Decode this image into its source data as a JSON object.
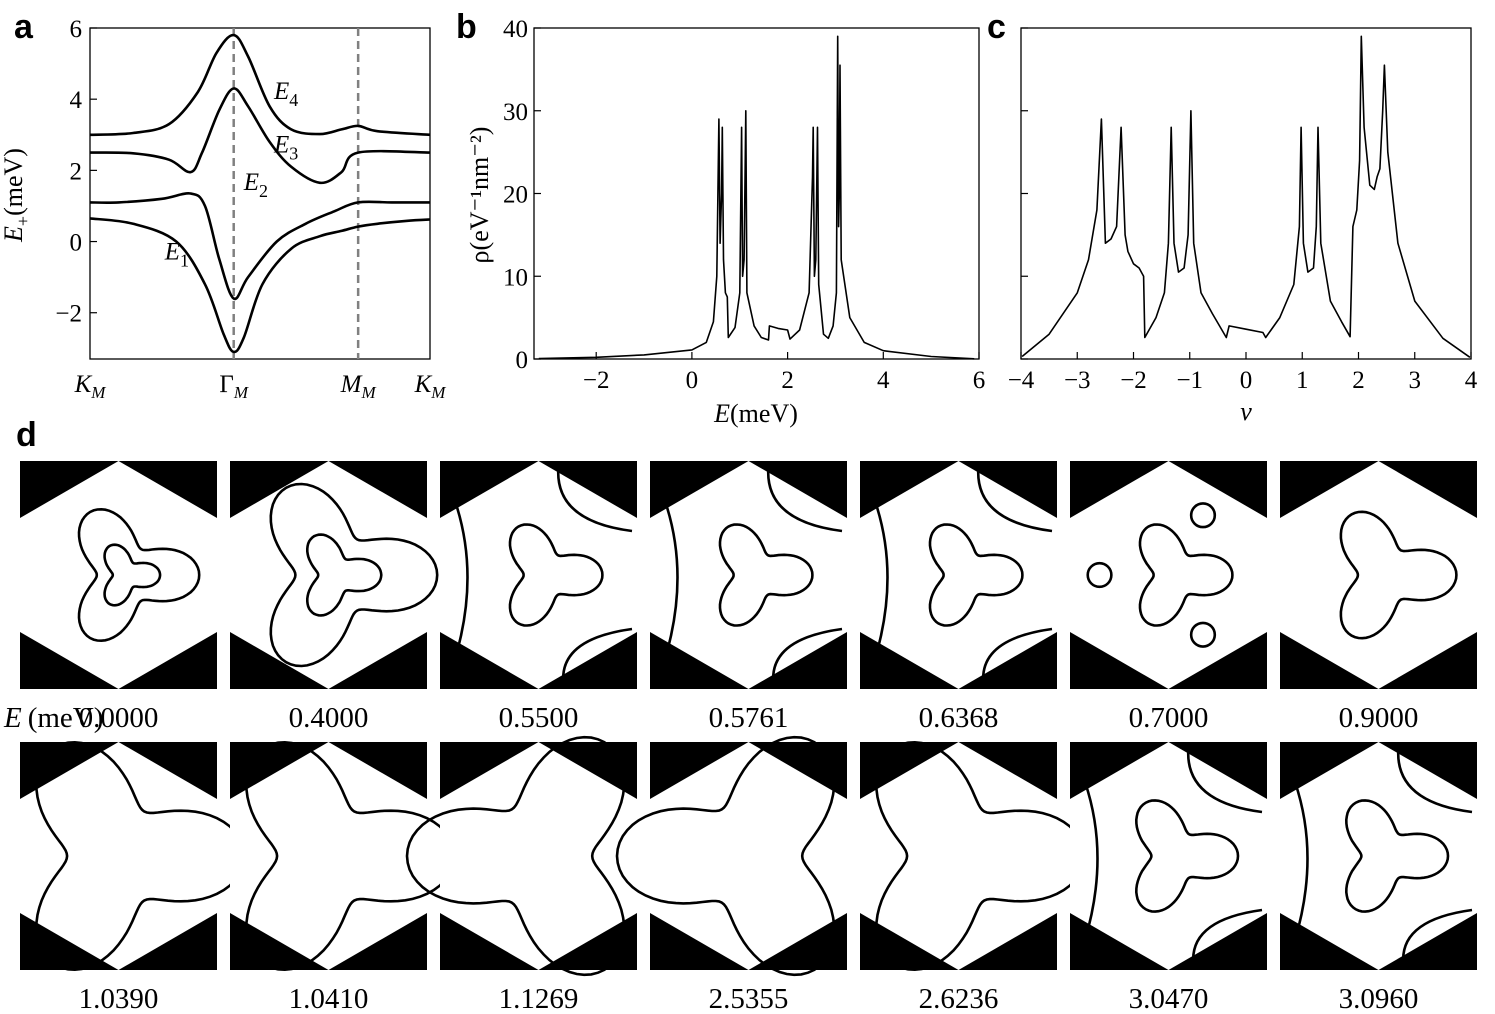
{
  "figure_labels": {
    "a": "a",
    "b": "b",
    "c": "c",
    "d": "d"
  },
  "chart_data": [
    {
      "id": "a",
      "type": "line",
      "title": "",
      "xlabel": "",
      "ylabel_main": "E",
      "ylabel_sub": "+",
      "ylabel_unit": "(meV)",
      "xticks": [
        {
          "label": "K",
          "sub": "M",
          "pos": 0
        },
        {
          "label": "Γ",
          "sub": "M",
          "pos": 1
        },
        {
          "label": "M",
          "sub": "M",
          "pos": 1.866
        },
        {
          "label": "K",
          "sub": "M",
          "pos": 2.366
        }
      ],
      "path_length": 2.366,
      "dashed_at": [
        1,
        1.866
      ],
      "ylim": [
        -3.3,
        6.0
      ],
      "yticks": [
        {
          "v": -2,
          "label": "−2"
        },
        {
          "v": 0,
          "label": "0"
        },
        {
          "v": 2,
          "label": "2"
        },
        {
          "v": 4,
          "label": "4"
        },
        {
          "v": 6,
          "label": "6"
        }
      ],
      "series": [
        {
          "name": "E1",
          "label": "E",
          "sub": "1",
          "label_at": [
            0.52,
            -0.5
          ],
          "points": [
            [
              0,
              0.65
            ],
            [
              0.3,
              0.5
            ],
            [
              0.6,
              0.0
            ],
            [
              0.8,
              -1.2
            ],
            [
              0.93,
              -2.6
            ],
            [
              1.0,
              -3.1
            ],
            [
              1.07,
              -2.7
            ],
            [
              1.2,
              -1.2
            ],
            [
              1.4,
              -0.2
            ],
            [
              1.6,
              0.15
            ],
            [
              1.75,
              0.3
            ],
            [
              1.866,
              0.42
            ],
            [
              2.0,
              0.5
            ],
            [
              2.2,
              0.58
            ],
            [
              2.366,
              0.62
            ]
          ]
        },
        {
          "name": "E2",
          "label": "E",
          "sub": "2",
          "label_at": [
            1.07,
            1.45
          ],
          "points": [
            [
              0,
              1.1
            ],
            [
              0.2,
              1.1
            ],
            [
              0.5,
              1.2
            ],
            [
              0.7,
              1.35
            ],
            [
              0.8,
              1.0
            ],
            [
              0.9,
              -0.5
            ],
            [
              1.0,
              -1.6
            ],
            [
              1.1,
              -1.0
            ],
            [
              1.3,
              0.0
            ],
            [
              1.5,
              0.5
            ],
            [
              1.7,
              0.85
            ],
            [
              1.866,
              1.1
            ],
            [
              2.1,
              1.1
            ],
            [
              2.366,
              1.1
            ]
          ]
        },
        {
          "name": "E3",
          "label": "E",
          "sub": "3",
          "label_at": [
            1.28,
            2.5
          ],
          "points": [
            [
              0,
              2.5
            ],
            [
              0.3,
              2.48
            ],
            [
              0.55,
              2.3
            ],
            [
              0.7,
              1.95
            ],
            [
              0.78,
              2.5
            ],
            [
              0.9,
              3.7
            ],
            [
              1.0,
              4.3
            ],
            [
              1.1,
              3.8
            ],
            [
              1.25,
              2.8
            ],
            [
              1.4,
              2.1
            ],
            [
              1.6,
              1.65
            ],
            [
              1.75,
              1.95
            ],
            [
              1.866,
              2.5
            ],
            [
              2.366,
              2.5
            ]
          ]
        },
        {
          "name": "E4",
          "label": "E",
          "sub": "4",
          "label_at": [
            1.28,
            4.0
          ],
          "points": [
            [
              0,
              3.0
            ],
            [
              0.3,
              3.05
            ],
            [
              0.55,
              3.3
            ],
            [
              0.75,
              4.2
            ],
            [
              0.88,
              5.3
            ],
            [
              1.0,
              5.8
            ],
            [
              1.1,
              5.2
            ],
            [
              1.25,
              3.8
            ],
            [
              1.4,
              3.15
            ],
            [
              1.6,
              3.02
            ],
            [
              1.75,
              3.15
            ],
            [
              1.866,
              3.25
            ],
            [
              2.0,
              3.1
            ],
            [
              2.366,
              3.0
            ]
          ]
        }
      ]
    },
    {
      "id": "b",
      "type": "line",
      "title": "",
      "xlabel_main": "E",
      "xlabel_unit": "(meV)",
      "ylabel": "ρ(eV⁻¹nm⁻²)",
      "xlim": [
        -3.3,
        6.0
      ],
      "ylim": [
        0,
        40
      ],
      "xticks": [
        {
          "v": -2,
          "label": "−2"
        },
        {
          "v": 0,
          "label": "0"
        },
        {
          "v": 2,
          "label": "2"
        },
        {
          "v": 4,
          "label": "4"
        },
        {
          "v": 6,
          "label": "6"
        }
      ],
      "yticks": [
        {
          "v": 0,
          "label": "0"
        },
        {
          "v": 10,
          "label": "10"
        },
        {
          "v": 20,
          "label": "20"
        },
        {
          "v": 30,
          "label": "30"
        },
        {
          "v": 40,
          "label": "40"
        }
      ],
      "series": [
        {
          "name": "DOS",
          "points": [
            [
              -3.2,
              0.05
            ],
            [
              -2,
              0.2
            ],
            [
              -1,
              0.5
            ],
            [
              0,
              1.1
            ],
            [
              0.3,
              2.0
            ],
            [
              0.45,
              4.5
            ],
            [
              0.52,
              10
            ],
            [
              0.565,
              29
            ],
            [
              0.59,
              14
            ],
            [
              0.62,
              20
            ],
            [
              0.635,
              28
            ],
            [
              0.66,
              12
            ],
            [
              0.7,
              8
            ],
            [
              0.74,
              7.5
            ],
            [
              0.76,
              2.6
            ],
            [
              0.9,
              3.8
            ],
            [
              1.0,
              8
            ],
            [
              1.039,
              28
            ],
            [
              1.06,
              10
            ],
            [
              1.09,
              12
            ],
            [
              1.127,
              30
            ],
            [
              1.15,
              8
            ],
            [
              1.3,
              4
            ],
            [
              1.45,
              2.6
            ],
            [
              1.6,
              2.3
            ],
            [
              1.62,
              4.0
            ],
            [
              1.8,
              3.7
            ],
            [
              2.0,
              3.5
            ],
            [
              2.05,
              2.4
            ],
            [
              2.25,
              3.5
            ],
            [
              2.45,
              8
            ],
            [
              2.52,
              22
            ],
            [
              2.536,
              28
            ],
            [
              2.56,
              10
            ],
            [
              2.59,
              12
            ],
            [
              2.624,
              28
            ],
            [
              2.65,
              9
            ],
            [
              2.75,
              3
            ],
            [
              2.85,
              2.5
            ],
            [
              2.95,
              4
            ],
            [
              3.02,
              8
            ],
            [
              3.047,
              39
            ],
            [
              3.065,
              16
            ],
            [
              3.08,
              20
            ],
            [
              3.096,
              35.5
            ],
            [
              3.12,
              12
            ],
            [
              3.3,
              5
            ],
            [
              3.6,
              2
            ],
            [
              4,
              1
            ],
            [
              5,
              0.3
            ],
            [
              5.9,
              0.02
            ]
          ]
        }
      ]
    },
    {
      "id": "c",
      "type": "line",
      "title": "",
      "xlabel": "ν",
      "ylabel": "",
      "xlim": [
        -4,
        4
      ],
      "ylim": [
        0,
        40
      ],
      "xticks": [
        {
          "v": -4,
          "label": "−4"
        },
        {
          "v": -3,
          "label": "−3"
        },
        {
          "v": -2,
          "label": "−2"
        },
        {
          "v": -1,
          "label": "−1"
        },
        {
          "v": 0,
          "label": "0"
        },
        {
          "v": 1,
          "label": "1"
        },
        {
          "v": 2,
          "label": "2"
        },
        {
          "v": 3,
          "label": "3"
        },
        {
          "v": 4,
          "label": "4"
        }
      ],
      "yticks": [
        {
          "v": 0,
          "label": ""
        },
        {
          "v": 10,
          "label": ""
        },
        {
          "v": 20,
          "label": ""
        },
        {
          "v": 30,
          "label": ""
        },
        {
          "v": 40,
          "label": ""
        }
      ],
      "series": [
        {
          "name": "DOS vs filling",
          "points": [
            [
              -3.98,
              0.3
            ],
            [
              -3.5,
              3
            ],
            [
              -3.0,
              8
            ],
            [
              -2.8,
              12
            ],
            [
              -2.65,
              18
            ],
            [
              -2.57,
              29
            ],
            [
              -2.5,
              14
            ],
            [
              -2.4,
              14.5
            ],
            [
              -2.3,
              16
            ],
            [
              -2.22,
              28
            ],
            [
              -2.15,
              15
            ],
            [
              -2.1,
              13
            ],
            [
              -2.0,
              11.5
            ],
            [
              -1.9,
              11
            ],
            [
              -1.82,
              10
            ],
            [
              -1.8,
              2.6
            ],
            [
              -1.6,
              5
            ],
            [
              -1.45,
              8
            ],
            [
              -1.38,
              14
            ],
            [
              -1.33,
              28
            ],
            [
              -1.28,
              14
            ],
            [
              -1.2,
              10.5
            ],
            [
              -1.1,
              11
            ],
            [
              -1.03,
              15
            ],
            [
              -0.98,
              30
            ],
            [
              -0.93,
              14
            ],
            [
              -0.8,
              8
            ],
            [
              -0.6,
              5.5
            ],
            [
              -0.35,
              2.6
            ],
            [
              -0.3,
              4.0
            ],
            [
              0.0,
              3.6
            ],
            [
              0.3,
              3.2
            ],
            [
              0.35,
              2.6
            ],
            [
              0.6,
              5
            ],
            [
              0.85,
              9
            ],
            [
              0.95,
              16
            ],
            [
              0.98,
              28
            ],
            [
              1.02,
              14
            ],
            [
              1.1,
              10.5
            ],
            [
              1.2,
              11
            ],
            [
              1.25,
              16
            ],
            [
              1.28,
              28
            ],
            [
              1.33,
              14
            ],
            [
              1.5,
              7
            ],
            [
              1.7,
              4.5
            ],
            [
              1.85,
              2.7
            ],
            [
              1.9,
              16
            ],
            [
              1.97,
              18
            ],
            [
              2.02,
              24
            ],
            [
              2.05,
              39
            ],
            [
              2.1,
              28
            ],
            [
              2.2,
              21
            ],
            [
              2.28,
              20.5
            ],
            [
              2.33,
              22
            ],
            [
              2.38,
              23
            ],
            [
              2.43,
              30
            ],
            [
              2.46,
              35.5
            ],
            [
              2.52,
              25
            ],
            [
              2.7,
              14
            ],
            [
              3.0,
              7
            ],
            [
              3.5,
              2.5
            ],
            [
              3.98,
              0.2
            ]
          ]
        }
      ]
    }
  ],
  "panel_d": {
    "row_label_main": "E",
    "row_label_unit": "(meV)",
    "energies_row1": [
      "0.0000",
      "0.4000",
      "0.5500",
      "0.5761",
      "0.6368",
      "0.7000",
      "0.9000"
    ],
    "energies_row2": [
      "1.0390",
      "1.0410",
      "1.1269",
      "2.5355",
      "2.6236",
      "3.0470",
      "3.0960"
    ],
    "panels": [
      {
        "label": "0.0000",
        "contours": [
          {
            "type": "trefoil",
            "scale": 0.26
          },
          {
            "type": "trefoil",
            "scale": 0.12
          }
        ]
      },
      {
        "label": "0.4000",
        "contours": [
          {
            "type": "trefoil",
            "scale": 0.36
          },
          {
            "type": "trefoil",
            "scale": 0.16
          }
        ]
      },
      {
        "label": "0.5500",
        "contours": [
          {
            "type": "trefoil",
            "scale": 0.2
          },
          {
            "type": "outer_arcs"
          }
        ]
      },
      {
        "label": "0.5761",
        "contours": [
          {
            "type": "trefoil",
            "scale": 0.2
          },
          {
            "type": "outer_arcs"
          }
        ]
      },
      {
        "label": "0.6368",
        "contours": [
          {
            "type": "trefoil",
            "scale": 0.2
          },
          {
            "type": "outer_arcs"
          }
        ]
      },
      {
        "label": "0.7000",
        "contours": [
          {
            "type": "trefoil",
            "scale": 0.2
          },
          {
            "type": "pockets"
          }
        ]
      },
      {
        "label": "0.9000",
        "contours": [
          {
            "type": "trefoil",
            "scale": 0.25
          }
        ]
      },
      {
        "label": "1.0390",
        "contours": [
          {
            "type": "inv_trefoil",
            "scale": 0.45
          }
        ]
      },
      {
        "label": "1.0410",
        "contours": [
          {
            "type": "inv_trefoil",
            "scale": 0.45
          }
        ]
      },
      {
        "label": "1.1269",
        "contours": [
          {
            "type": "triangles"
          }
        ]
      },
      {
        "label": "2.5355",
        "contours": [
          {
            "type": "triangles"
          }
        ]
      },
      {
        "label": "2.6236",
        "contours": [
          {
            "type": "inv_trefoil",
            "scale": 0.45
          }
        ]
      },
      {
        "label": "3.0470",
        "contours": [
          {
            "type": "trefoil",
            "scale": 0.22
          },
          {
            "type": "outer_arcs"
          }
        ]
      },
      {
        "label": "3.0960",
        "contours": [
          {
            "type": "trefoil",
            "scale": 0.22
          },
          {
            "type": "outer_arcs"
          }
        ]
      }
    ]
  }
}
